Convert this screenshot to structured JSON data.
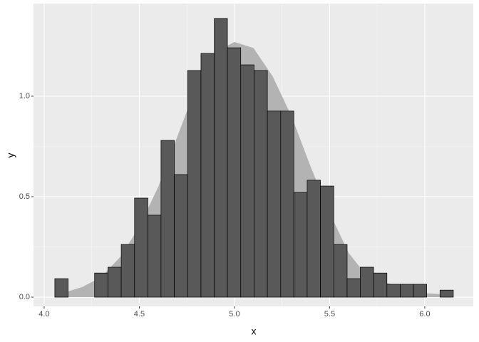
{
  "chart_data": {
    "type": "histogram",
    "x_label": "x",
    "y_label": "y",
    "bins": [
      4.056,
      4.126,
      4.196,
      4.265,
      4.335,
      4.405,
      4.475,
      4.545,
      4.614,
      4.684,
      4.754,
      4.824,
      4.894,
      4.963,
      5.033,
      5.103,
      5.173,
      5.243,
      5.312,
      5.382,
      5.452,
      5.522,
      5.592,
      5.661,
      5.731,
      5.801,
      5.871,
      5.941,
      6.01,
      6.08,
      6.15
    ],
    "values": [
      0.092,
      0,
      0,
      0.12,
      0.149,
      0.262,
      0.493,
      0.408,
      0.78,
      0.61,
      1.128,
      1.213,
      1.387,
      1.241,
      1.156,
      1.128,
      0.926,
      0.926,
      0.521,
      0.582,
      0.553,
      0.262,
      0.092,
      0.149,
      0.12,
      0.064,
      0.064,
      0.064,
      0,
      0.035
    ],
    "color": "#595959",
    "density": {
      "color": "#b3b3b3",
      "x": [
        4.06,
        4.2,
        4.3,
        4.4,
        4.5,
        4.6,
        4.7,
        4.8,
        4.9,
        5.0,
        5.1,
        5.2,
        5.3,
        5.4,
        5.5,
        5.6,
        5.7,
        5.8,
        5.9,
        6.0,
        6.15
      ],
      "y": [
        0.01,
        0.05,
        0.1,
        0.2,
        0.35,
        0.55,
        0.8,
        1.05,
        1.22,
        1.27,
        1.24,
        1.1,
        0.9,
        0.65,
        0.42,
        0.22,
        0.1,
        0.07,
        0.05,
        0.02,
        0.01
      ]
    },
    "xlim": [
      3.944,
      6.255
    ],
    "ylim": [
      -0.046,
      1.461
    ],
    "xticks": [
      {
        "value": 4.0,
        "label": "4.0"
      },
      {
        "value": 4.5,
        "label": "4.5"
      },
      {
        "value": 5.0,
        "label": "5.0"
      },
      {
        "value": 5.5,
        "label": "5.5"
      },
      {
        "value": 6.0,
        "label": "6.0"
      }
    ],
    "yticks": [
      {
        "value": 0,
        "label": "0.0"
      },
      {
        "value": 0.5,
        "label": "0.5"
      },
      {
        "value": 1.0,
        "label": "1.0"
      }
    ],
    "grid": true
  }
}
